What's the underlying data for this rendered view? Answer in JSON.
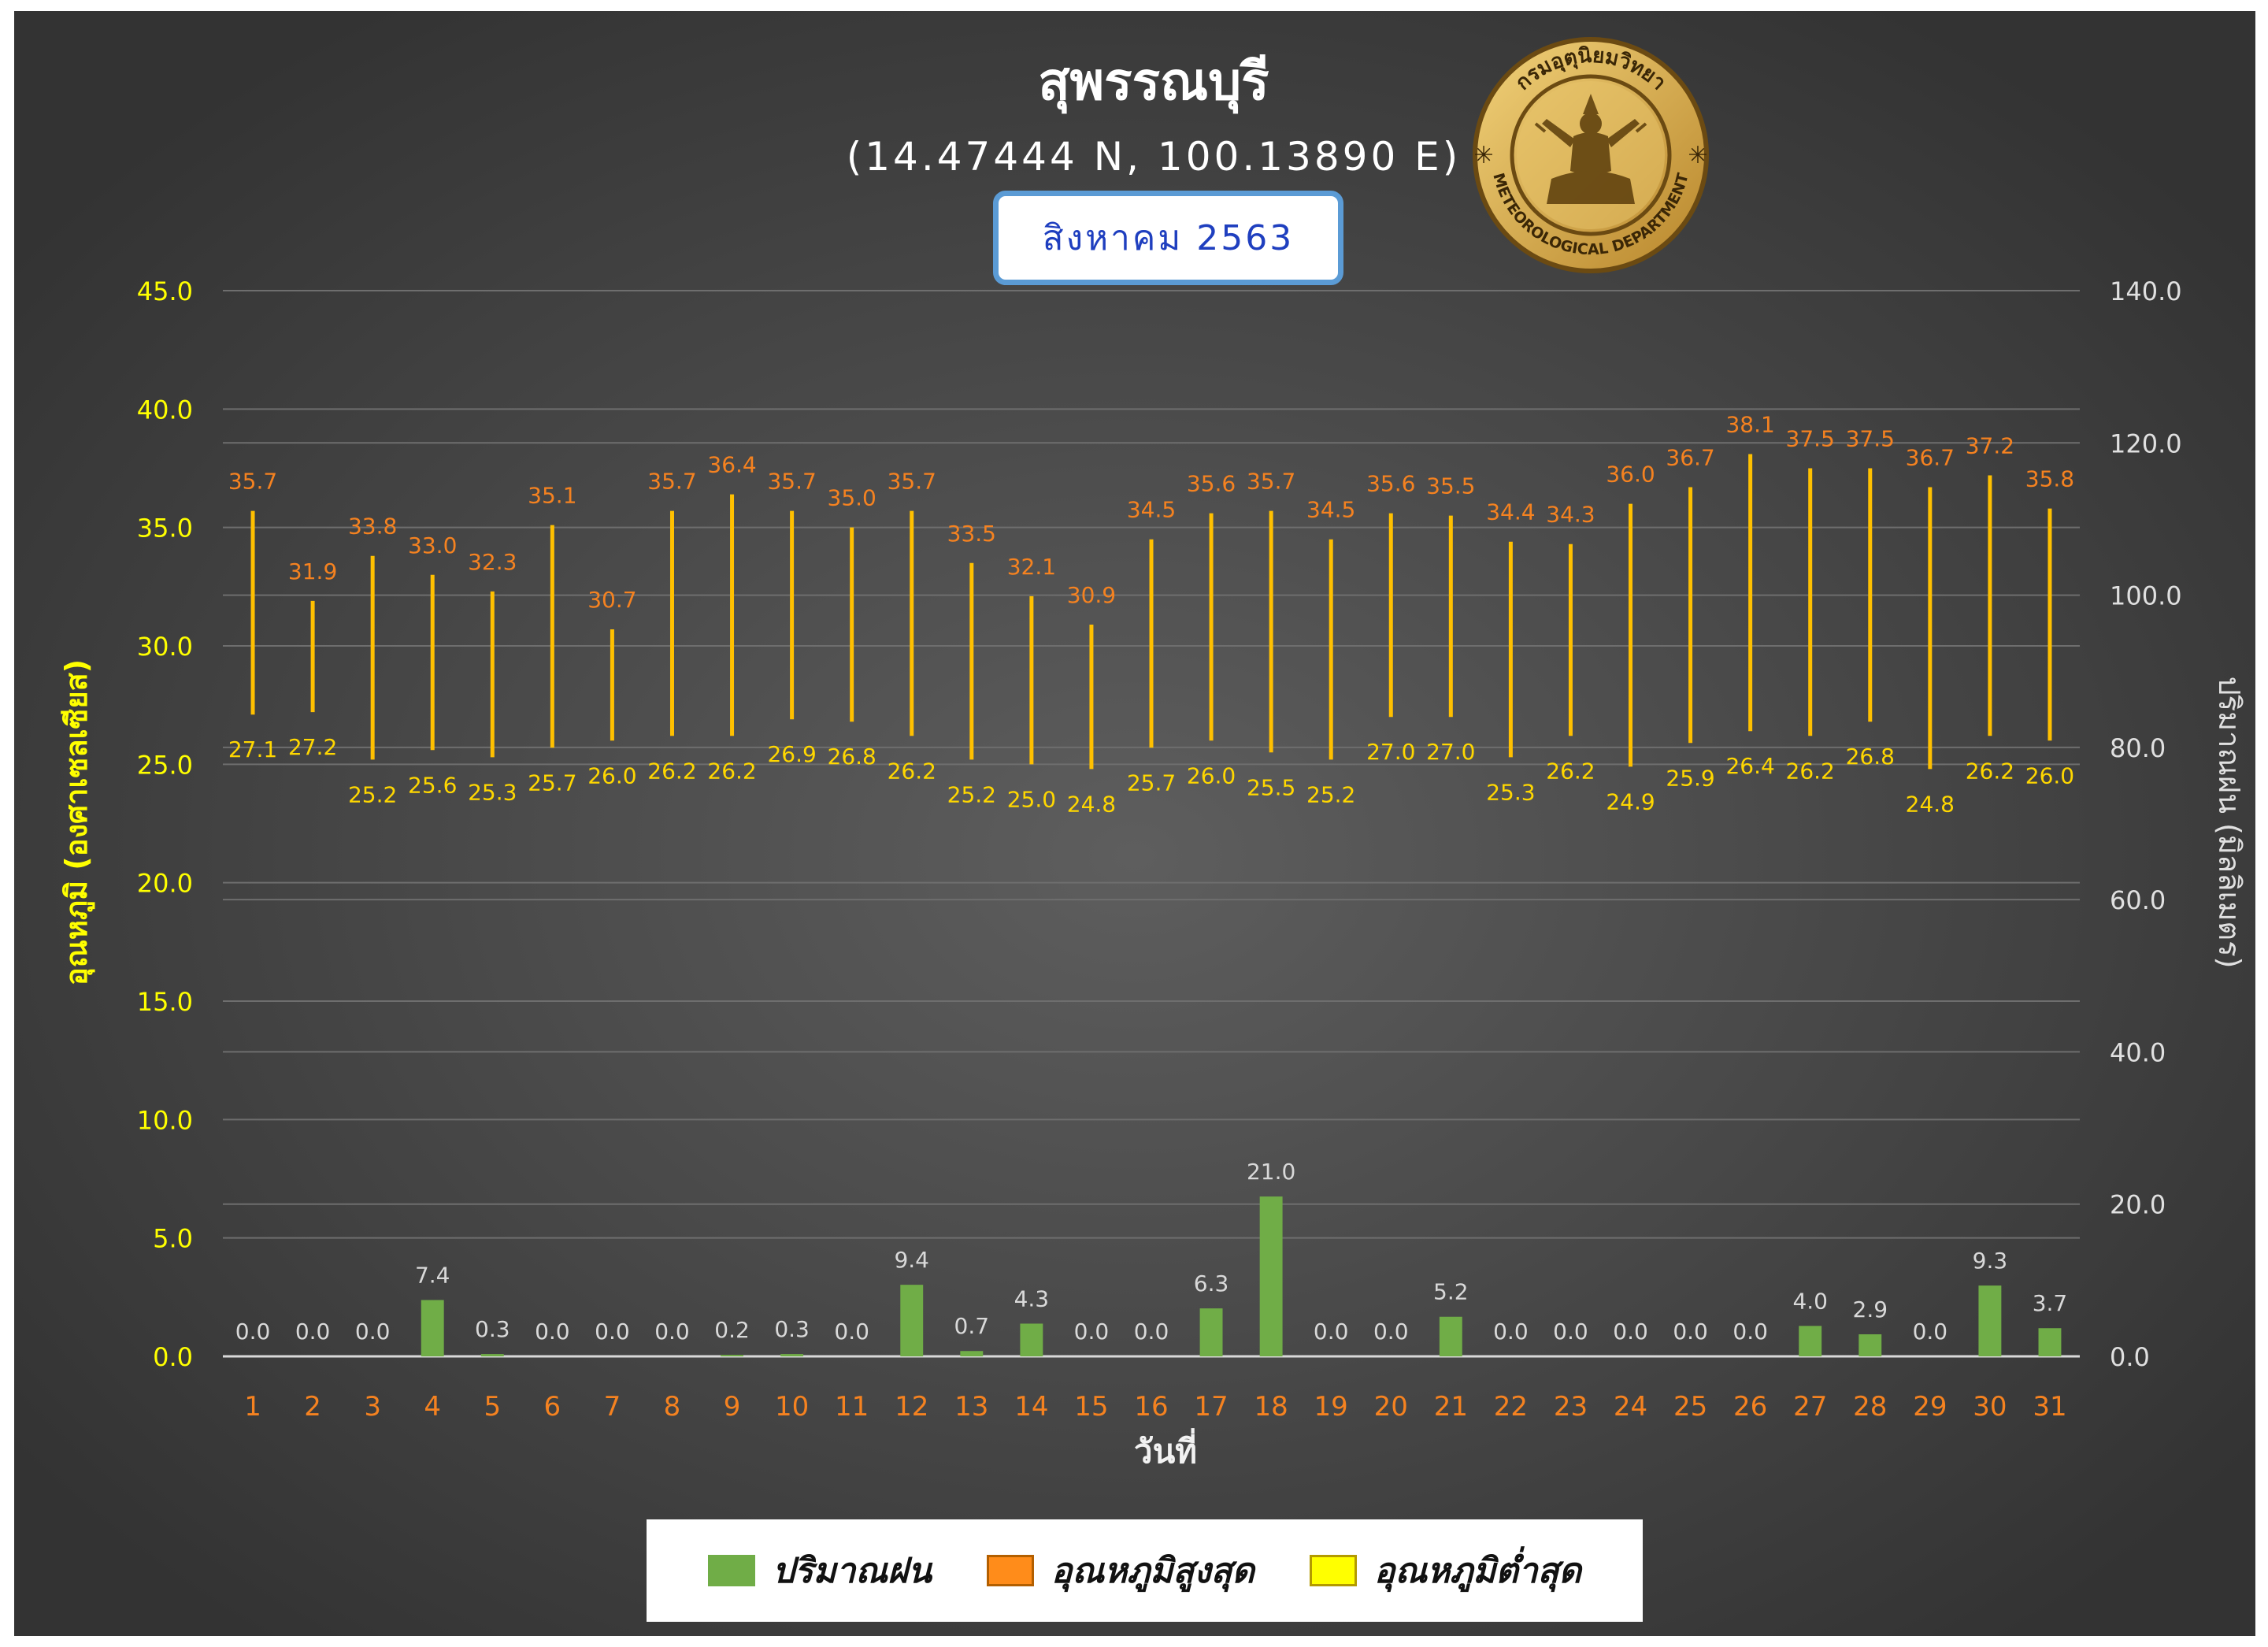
{
  "title": "สุพรรณบุรี",
  "subtitle": "(14.47444 N, 100.13890 E)",
  "month_label": "สิงหาคม 2563",
  "logo": {
    "name": "meteorological-department-seal",
    "text_top": "กรมอุตุนิยมวิทยา",
    "text_bottom": "METEOROLOGICAL DEPARTMENT"
  },
  "colors": {
    "background": "#404040",
    "rain": "#70ad47",
    "max_label": "#f58220",
    "min_label": "#ffd700",
    "range_line": "#ffc000",
    "left_axis": "#ffff00",
    "right_axis": "#e0e0e0",
    "x_ticks": "#f58220",
    "rain_label": "#d9d9d9"
  },
  "legend": {
    "rain": "ปริมาณฝน",
    "max": "อุณหภูมิสูงสุด",
    "min": "อุณหภูมิต่ำสุด"
  },
  "chart_data": {
    "type": "bar",
    "xlabel": "วันที่",
    "ylabel_left": "อุณหภูมิ (องศาเซลเซียส)",
    "ylabel_right": "ปริมาณฝน (มิลลิเมตร)",
    "ylim_left": [
      0,
      45
    ],
    "ylim_right": [
      0,
      140
    ],
    "left_ticks": [
      "0.0",
      "5.0",
      "10.0",
      "15.0",
      "20.0",
      "25.0",
      "30.0",
      "35.0",
      "40.0",
      "45.0"
    ],
    "right_ticks": [
      "0.0",
      "20.0",
      "40.0",
      "60.0",
      "80.0",
      "100.0",
      "120.0",
      "140.0"
    ],
    "grid": true,
    "legend_position": "bottom",
    "categories": [
      "1",
      "2",
      "3",
      "4",
      "5",
      "6",
      "7",
      "8",
      "9",
      "10",
      "11",
      "12",
      "13",
      "14",
      "15",
      "16",
      "17",
      "18",
      "19",
      "20",
      "21",
      "22",
      "23",
      "24",
      "25",
      "26",
      "27",
      "28",
      "29",
      "30",
      "31"
    ],
    "series": [
      {
        "name": "ปริมาณฝน",
        "axis": "right",
        "type": "bar",
        "values": [
          0.0,
          0.0,
          0.0,
          7.4,
          0.3,
          0.0,
          0.0,
          0.0,
          0.2,
          0.3,
          0.0,
          9.4,
          0.7,
          4.3,
          0.0,
          0.0,
          6.3,
          21.0,
          0.0,
          0.0,
          5.2,
          0.0,
          0.0,
          0.0,
          0.0,
          0.0,
          4.0,
          2.9,
          0.0,
          9.3,
          3.7
        ],
        "labels": [
          "0.0",
          "0.0",
          "0.0",
          "7.4",
          "0.3",
          "0.0",
          "0.0",
          "0.0",
          "0.2",
          "0.3",
          "0.0",
          "9.4",
          "0.7",
          "4.3",
          "0.0",
          "0.0",
          "6.3",
          "21.0",
          "0.0",
          "0.0",
          "5.2",
          "0.0",
          "0.0",
          "0.0",
          "0.0",
          "0.0",
          "4.0",
          "2.9",
          "0.0",
          "9.3",
          "3.7"
        ]
      },
      {
        "name": "อุณหภูมิสูงสุด",
        "axis": "left",
        "type": "range-high",
        "values": [
          35.7,
          31.9,
          33.8,
          33.0,
          32.3,
          35.1,
          30.7,
          35.7,
          36.4,
          35.7,
          35.0,
          35.7,
          33.5,
          32.1,
          30.9,
          34.5,
          35.6,
          35.7,
          34.5,
          35.6,
          35.5,
          34.4,
          34.3,
          36.0,
          36.7,
          38.1,
          37.5,
          37.5,
          36.7,
          37.2,
          35.8
        ],
        "labels": [
          "35.7",
          "31.9",
          "33.8",
          "33.0",
          "32.3",
          "35.1",
          "30.7",
          "35.7",
          "36.4",
          "35.7",
          "35.0",
          "35.7",
          "33.5",
          "32.1",
          "30.9",
          "34.5",
          "35.6",
          "35.7",
          "34.5",
          "35.6",
          "35.5",
          "34.4",
          "34.3",
          "36.0",
          "36.7",
          "38.1",
          "37.5",
          "37.5",
          "36.7",
          "37.2",
          "35.8"
        ]
      },
      {
        "name": "อุณหภูมิต่ำสุด",
        "axis": "left",
        "type": "range-low",
        "values": [
          27.1,
          27.2,
          25.2,
          25.6,
          25.3,
          25.7,
          26.0,
          26.2,
          26.2,
          26.9,
          26.8,
          26.2,
          25.2,
          25.0,
          24.8,
          25.7,
          26.0,
          25.5,
          25.2,
          27.0,
          27.0,
          25.3,
          26.2,
          24.9,
          25.9,
          26.4,
          26.2,
          26.8,
          24.8,
          26.2,
          26.0
        ],
        "labels": [
          "27.1",
          "27.2",
          "25.2",
          "25.6",
          "25.3",
          "25.7",
          "26.0",
          "26.2",
          "26.2",
          "26.9",
          "26.8",
          "26.2",
          "25.2",
          "25.0",
          "24.8",
          "25.7",
          "26.0",
          "25.5",
          "25.2",
          "27.0",
          "27.0",
          "25.3",
          "26.2",
          "24.9",
          "25.9",
          "26.4",
          "26.2",
          "26.8",
          "24.8",
          "26.2",
          "26.0"
        ]
      }
    ]
  }
}
